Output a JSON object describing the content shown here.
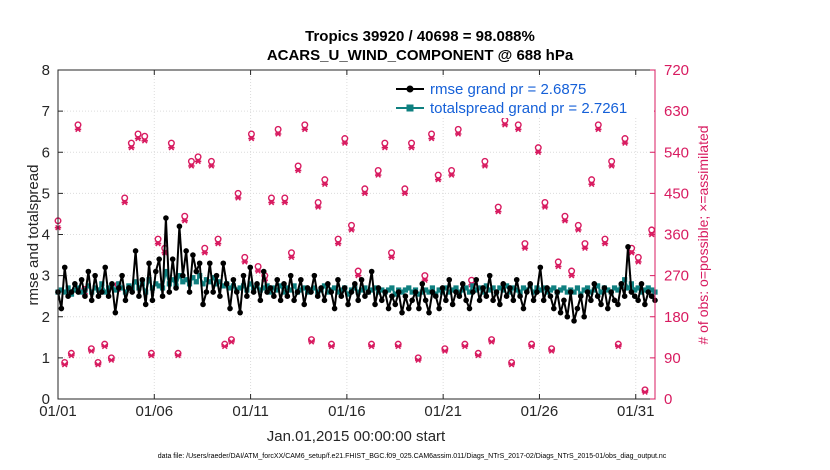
{
  "chart_data": {
    "type": "line",
    "title_line1": "Tropics 39920 / 40698 = 98.088%",
    "title_line2": "ACARS_U_WIND_COMPONENT @ 688 hPa",
    "xlabel": "Jan.01,2015 00:00:00 start",
    "ylabel": "rmse and totalspread",
    "ylabel_right": "# of obs: o=possible; ×=assimilated",
    "xlim": [
      1,
      32
    ],
    "ylim": [
      0,
      8
    ],
    "ylim_right": [
      0,
      720
    ],
    "x_ticks": [
      1,
      6,
      11,
      16,
      21,
      26,
      31
    ],
    "x_tick_labels": [
      "01/01",
      "01/06",
      "01/11",
      "01/16",
      "01/21",
      "01/26",
      "01/31"
    ],
    "y_ticks": [
      0,
      1,
      2,
      3,
      4,
      5,
      6,
      7,
      8
    ],
    "y_tick_labels": [
      "0",
      "1",
      "2",
      "3",
      "4",
      "5",
      "6",
      "7",
      "8"
    ],
    "y_right_ticks": [
      0,
      90,
      180,
      270,
      360,
      450,
      540,
      630,
      720
    ],
    "y_right_tick_labels": [
      "0",
      "90",
      "180",
      "270",
      "360",
      "450",
      "540",
      "630",
      "720"
    ],
    "series": [
      {
        "name": "rmse grand pr = 2.6875",
        "color": "#000000",
        "values": [
          2.6,
          2.2,
          3.2,
          2.5,
          2.6,
          2.8,
          2.6,
          2.9,
          2.5,
          3.1,
          2.4,
          3.0,
          2.5,
          2.6,
          3.2,
          2.5,
          2.8,
          2.1,
          2.7,
          3.0,
          2.4,
          2.7,
          2.6,
          3.6,
          2.5,
          2.9,
          2.3,
          3.3,
          2.4,
          3.1,
          3.4,
          2.5,
          4.4,
          2.6,
          3.4,
          2.7,
          4.2,
          3.0,
          3.6,
          2.6,
          3.5,
          3.1,
          3.3,
          2.3,
          2.6,
          3.3,
          2.6,
          3.0,
          2.5,
          3.3,
          2.8,
          2.2,
          2.9,
          2.6,
          2.1,
          3.0,
          2.5,
          3.2,
          2.6,
          2.8,
          2.4,
          3.1,
          2.6,
          2.7,
          2.5,
          2.9,
          2.4,
          2.8,
          2.5,
          3.0,
          2.4,
          2.6,
          2.9,
          2.3,
          2.7,
          2.6,
          3.0,
          2.5,
          2.7,
          2.4,
          2.8,
          2.6,
          2.2,
          2.9,
          2.5,
          2.7,
          2.3,
          2.6,
          2.8,
          2.4,
          2.9,
          2.5,
          2.6,
          3.1,
          2.3,
          2.7,
          2.4,
          2.6,
          2.2,
          2.5,
          2.3,
          2.6,
          2.1,
          2.5,
          2.2,
          2.4,
          2.6,
          2.2,
          2.8,
          2.4,
          2.1,
          2.6,
          2.5,
          2.2,
          2.7,
          2.4,
          2.9,
          2.3,
          2.6,
          2.5,
          2.8,
          2.4,
          2.2,
          2.6,
          2.9,
          2.4,
          2.7,
          2.5,
          3.0,
          2.4,
          2.6,
          2.3,
          2.8,
          2.5,
          2.7,
          2.4,
          2.9,
          2.5,
          2.2,
          2.6,
          2.8,
          2.4,
          2.6,
          3.2,
          2.4,
          2.7,
          2.5,
          2.2,
          2.6,
          2.1,
          2.4,
          2.0,
          2.6,
          1.9,
          2.2,
          2.5,
          2.0,
          2.6,
          2.4,
          2.8,
          2.5,
          2.3,
          2.7,
          2.2,
          2.6,
          2.4,
          2.3,
          2.8,
          2.5,
          3.7,
          2.6,
          2.5,
          2.4,
          2.8,
          2.3,
          2.6,
          2.5,
          2.4
        ],
        "label_text": "rmse grand pr = 2.6875"
      },
      {
        "name": "totalspread grand pr = 2.7261",
        "color": "#0f8080",
        "values": [
          2.6,
          2.65,
          2.6,
          2.7,
          2.55,
          2.65,
          2.7,
          2.6,
          2.65,
          2.75,
          2.6,
          2.7,
          2.65,
          2.8,
          2.6,
          2.7,
          2.75,
          2.65,
          2.8,
          2.7,
          2.6,
          2.75,
          2.7,
          2.85,
          2.7,
          2.8,
          2.6,
          2.9,
          2.7,
          2.8,
          2.75,
          2.7,
          3.1,
          2.8,
          2.9,
          2.75,
          3.0,
          2.85,
          2.9,
          2.8,
          2.95,
          2.85,
          3.0,
          2.8,
          2.9,
          2.85,
          2.95,
          2.8,
          2.85,
          2.75,
          2.8,
          2.7,
          2.75,
          2.65,
          2.7,
          2.75,
          2.65,
          2.8,
          2.7,
          2.75,
          2.65,
          2.7,
          2.75,
          2.6,
          2.7,
          2.65,
          2.75,
          2.6,
          2.7,
          2.65,
          2.75,
          2.6,
          2.65,
          2.7,
          2.6,
          2.65,
          2.7,
          2.6,
          2.65,
          2.75,
          2.6,
          2.65,
          2.7,
          2.6,
          2.65,
          2.7,
          2.55,
          2.65,
          2.7,
          2.6,
          2.65,
          2.7,
          2.6,
          2.65,
          2.7,
          2.6,
          2.65,
          2.6,
          2.65,
          2.7,
          2.55,
          2.65,
          2.6,
          2.65,
          2.7,
          2.6,
          2.65,
          2.55,
          2.6,
          2.65,
          2.6,
          2.7,
          2.55,
          2.65,
          2.6,
          2.7,
          2.6,
          2.65,
          2.7,
          2.6,
          2.65,
          2.7,
          2.6,
          2.75,
          2.65,
          2.7,
          2.6,
          2.75,
          2.65,
          2.7,
          2.6,
          2.7,
          2.65,
          2.75,
          2.6,
          2.7,
          2.65,
          2.6,
          2.7,
          2.65,
          2.75,
          2.6,
          2.7,
          2.65,
          2.7,
          2.6,
          2.65,
          2.7,
          2.6,
          2.65,
          2.7,
          2.6,
          2.65,
          2.6,
          2.7,
          2.55,
          2.65,
          2.7,
          2.6,
          2.65,
          2.75,
          2.6,
          2.7,
          2.65,
          2.6,
          2.7,
          2.65,
          2.75,
          2.9,
          2.7,
          2.8,
          2.65,
          2.7,
          2.6,
          2.65,
          2.7,
          2.65,
          2.6
        ],
        "label_text": "totalspread grand pr = 2.7261"
      }
    ],
    "obs_possible": [
      390,
      350,
      80,
      320,
      100,
      420,
      600,
      560,
      240,
      130,
      110,
      560,
      80,
      400,
      120,
      580,
      90,
      600,
      250,
      90,
      440,
      120,
      560,
      130,
      580,
      120,
      575,
      260,
      100,
      410,
      350,
      580,
      330,
      120,
      560,
      360,
      100,
      490,
      400,
      100,
      520,
      250,
      530,
      100,
      330,
      130,
      520,
      100,
      350,
      600,
      120,
      330,
      130,
      550,
      450,
      90,
      310,
      100,
      580,
      110,
      290,
      100,
      270,
      380,
      440,
      340,
      590,
      130,
      440,
      110,
      320,
      100,
      510,
      250,
      600,
      380,
      130,
      410,
      430,
      90,
      480,
      230,
      120,
      380,
      350,
      320,
      570,
      100,
      380,
      510,
      280,
      50,
      460,
      360,
      120,
      380,
      500,
      270,
      560,
      100,
      320,
      380,
      120,
      300,
      460,
      100,
      560,
      260,
      90,
      330,
      270,
      270,
      580,
      130,
      490,
      360,
      110,
      340,
      500,
      290,
      590,
      330,
      120,
      420,
      260,
      550,
      100,
      300,
      520,
      360,
      130,
      470,
      420,
      70,
      610,
      290,
      80,
      330,
      600,
      350,
      340,
      580,
      120,
      350,
      550,
      100,
      430,
      340,
      110,
      400,
      300,
      120,
      400,
      390,
      280,
      130,
      380,
      250,
      340,
      100,
      480,
      310,
      600,
      110,
      350,
      300,
      520,
      310,
      120,
      380,
      570,
      100,
      330,
      90,
      310,
      400,
      20,
      590,
      370,
      560
    ],
    "obs_assimilated": [
      375,
      340,
      75,
      310,
      95,
      410,
      590,
      550,
      230,
      125,
      105,
      550,
      75,
      390,
      115,
      570,
      85,
      590,
      240,
      85,
      430,
      115,
      550,
      125,
      570,
      115,
      565,
      250,
      95,
      400,
      340,
      570,
      320,
      115,
      550,
      350,
      95,
      480,
      390,
      95,
      510,
      240,
      520,
      95,
      320,
      125,
      510,
      95,
      340,
      590,
      115,
      320,
      125,
      540,
      440,
      85,
      300,
      95,
      570,
      105,
      280,
      95,
      260,
      370,
      430,
      330,
      580,
      125,
      430,
      105,
      310,
      95,
      500,
      240,
      590,
      370,
      125,
      400,
      420,
      85,
      470,
      220,
      115,
      370,
      340,
      310,
      560,
      95,
      370,
      500,
      270,
      45,
      450,
      350,
      115,
      370,
      490,
      260,
      550,
      95,
      310,
      370,
      115,
      290,
      450,
      95,
      550,
      250,
      85,
      320,
      260,
      260,
      570,
      125,
      480,
      350,
      105,
      330,
      490,
      280,
      580,
      320,
      115,
      410,
      250,
      540,
      95,
      290,
      510,
      350,
      125,
      460,
      410,
      65,
      600,
      280,
      75,
      320,
      590,
      340,
      330,
      570,
      115,
      340,
      540,
      95,
      420,
      330,
      105,
      390,
      290,
      115,
      390,
      380,
      270,
      125,
      370,
      240,
      330,
      95,
      470,
      300,
      590,
      105,
      340,
      290,
      510,
      300,
      115,
      370,
      560,
      95,
      320,
      85,
      300,
      390,
      15,
      580,
      360,
      550
    ]
  },
  "footer_text": "data file: /Users/raeder/DAI/ATM_forcXX/CAM6_setup/f.e21.FHIST_BGC.f09_025.CAM6assim.011/Diags_NTrS_2017-02/Diags_NTrS_2015-01/obs_diag_output.nc",
  "colors": {
    "rmse": "#000000",
    "spread": "#0f8080",
    "obs": "#d81b60",
    "legend_text": "#1560d8"
  }
}
